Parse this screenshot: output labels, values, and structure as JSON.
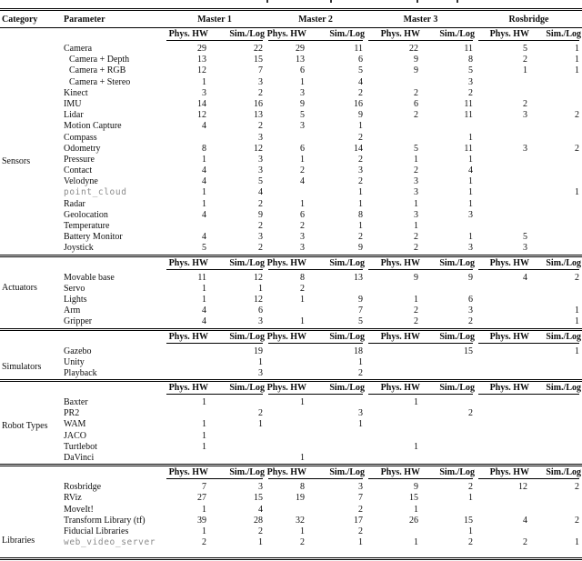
{
  "table": {
    "header": {
      "category": "Category",
      "parameter": "Parameter",
      "groups": [
        "Master 1",
        "Master 2",
        "Master 3",
        "Rosbridge"
      ],
      "subheaders": [
        "Phys. HW",
        "Sim./Log"
      ]
    },
    "sections": [
      {
        "category": "Sensors",
        "rows": [
          {
            "param": "Camera",
            "values": [
              "29",
              "22",
              "29",
              "11",
              "22",
              "11",
              "5",
              "1"
            ]
          },
          {
            "param": "Camera + Depth",
            "indent": true,
            "values": [
              "13",
              "15",
              "13",
              "6",
              "9",
              "8",
              "2",
              "1"
            ]
          },
          {
            "param": "Camera + RGB",
            "indent": true,
            "values": [
              "12",
              "7",
              "6",
              "5",
              "9",
              "5",
              "1",
              "1"
            ]
          },
          {
            "param": "Camera + Stereo",
            "indent": true,
            "values": [
              "1",
              "3",
              "1",
              "4",
              "",
              "3",
              "",
              ""
            ]
          },
          {
            "param": "Kinect",
            "values": [
              "3",
              "2",
              "3",
              "2",
              "2",
              "2",
              "",
              ""
            ]
          },
          {
            "param": "IMU",
            "values": [
              "14",
              "16",
              "9",
              "16",
              "6",
              "11",
              "2",
              ""
            ]
          },
          {
            "param": "Lidar",
            "values": [
              "12",
              "13",
              "5",
              "9",
              "2",
              "11",
              "3",
              "2"
            ]
          },
          {
            "param": "Motion Capture",
            "values": [
              "4",
              "2",
              "3",
              "1",
              "",
              "",
              "",
              ""
            ]
          },
          {
            "param": "Compass",
            "values": [
              "",
              "3",
              "",
              "2",
              "",
              "1",
              "",
              ""
            ]
          },
          {
            "param": "Odometry",
            "values": [
              "8",
              "12",
              "6",
              "14",
              "5",
              "11",
              "3",
              "2"
            ]
          },
          {
            "param": "Pressure",
            "values": [
              "1",
              "3",
              "1",
              "2",
              "1",
              "1",
              "",
              ""
            ]
          },
          {
            "param": "Contact",
            "values": [
              "4",
              "3",
              "2",
              "3",
              "2",
              "4",
              "",
              ""
            ]
          },
          {
            "param": "Velodyne",
            "values": [
              "4",
              "5",
              "4",
              "2",
              "3",
              "1",
              "",
              ""
            ]
          },
          {
            "param": "point_cloud",
            "mono": true,
            "values": [
              "1",
              "4",
              "",
              "1",
              "3",
              "1",
              "",
              "1"
            ]
          },
          {
            "param": "Radar",
            "values": [
              "1",
              "2",
              "1",
              "1",
              "1",
              "1",
              "",
              ""
            ]
          },
          {
            "param": "Geolocation",
            "values": [
              "4",
              "9",
              "6",
              "8",
              "3",
              "3",
              "",
              ""
            ]
          },
          {
            "param": "Temperature",
            "values": [
              "",
              "2",
              "2",
              "1",
              "1",
              "",
              "",
              ""
            ]
          },
          {
            "param": "Battery Monitor",
            "values": [
              "4",
              "3",
              "3",
              "2",
              "2",
              "1",
              "5",
              ""
            ]
          },
          {
            "param": "Joystick",
            "values": [
              "5",
              "2",
              "3",
              "9",
              "2",
              "3",
              "3",
              ""
            ]
          }
        ]
      },
      {
        "category": "Actuators",
        "rows": [
          {
            "param": "Movable base",
            "values": [
              "11",
              "12",
              "8",
              "13",
              "9",
              "9",
              "4",
              "2"
            ]
          },
          {
            "param": "Servo",
            "values": [
              "1",
              "1",
              "2",
              "",
              "",
              "",
              "",
              ""
            ]
          },
          {
            "param": "Lights",
            "values": [
              "1",
              "12",
              "1",
              "9",
              "1",
              "6",
              "",
              ""
            ]
          },
          {
            "param": "Arm",
            "values": [
              "4",
              "6",
              "",
              "7",
              "2",
              "3",
              "",
              "1"
            ]
          },
          {
            "param": "Gripper",
            "values": [
              "4",
              "3",
              "1",
              "5",
              "2",
              "2",
              "",
              "1"
            ]
          }
        ]
      },
      {
        "category": "Simulators",
        "rows": [
          {
            "param": "Gazebo",
            "values": [
              "",
              "19",
              "",
              "18",
              "",
              "15",
              "",
              "1"
            ]
          },
          {
            "param": "Unity",
            "values": [
              "",
              "1",
              "",
              "1",
              "",
              "",
              "",
              ""
            ]
          },
          {
            "param": "Playback",
            "values": [
              "",
              "3",
              "",
              "2",
              "",
              "",
              "",
              ""
            ]
          }
        ]
      },
      {
        "category": "Robot Types",
        "rows": [
          {
            "param": "Baxter",
            "values": [
              "1",
              "",
              "1",
              "",
              "1",
              "",
              "",
              ""
            ]
          },
          {
            "param": "PR2",
            "values": [
              "",
              "2",
              "",
              "3",
              "",
              "2",
              "",
              ""
            ]
          },
          {
            "param": "WAM",
            "values": [
              "1",
              "1",
              "",
              "1",
              "",
              "",
              "",
              ""
            ]
          },
          {
            "param": "JACO",
            "values": [
              "1",
              "",
              "",
              "",
              "",
              "",
              "",
              ""
            ]
          },
          {
            "param": "Turtlebot",
            "values": [
              "1",
              "",
              "",
              "",
              "1",
              "",
              "",
              ""
            ]
          },
          {
            "param": "DaVinci",
            "values": [
              "",
              "",
              "1",
              "",
              "",
              "",
              "",
              ""
            ]
          }
        ]
      },
      {
        "category": "Libraries",
        "rows": [
          {
            "param": "Rosbridge",
            "values": [
              "7",
              "3",
              "8",
              "3",
              "9",
              "2",
              "12",
              "2"
            ]
          },
          {
            "param": "RViz",
            "values": [
              "27",
              "15",
              "19",
              "7",
              "15",
              "1",
              "",
              ""
            ]
          },
          {
            "param": "MoveIt!",
            "values": [
              "1",
              "4",
              "",
              "2",
              "1",
              "",
              "",
              ""
            ]
          },
          {
            "param": "Transform Library (tf)",
            "values": [
              "39",
              "28",
              "32",
              "17",
              "26",
              "15",
              "4",
              "2"
            ]
          },
          {
            "param": "Fiducial Libraries",
            "values": [
              "1",
              "2",
              "1",
              "2",
              "",
              "1",
              "",
              ""
            ]
          },
          {
            "param": "web_video_server",
            "mono": true,
            "values": [
              "2",
              "1",
              "2",
              "1",
              "1",
              "2",
              "2",
              "1"
            ]
          }
        ]
      }
    ]
  }
}
